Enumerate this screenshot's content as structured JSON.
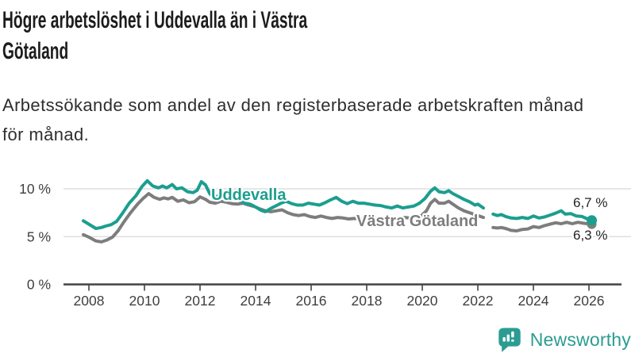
{
  "header": {
    "title": "Högre arbetslöshet i Uddevalla än i Västra Götaland",
    "title_lines": [
      "Högre arbetslöshet i Uddevalla än i Västra",
      "Götaland"
    ],
    "subtitle": "Arbetssökande som andel av den registerbaserade arbetskraften månad för månad.",
    "subtitle_lines": [
      "Arbetssökande som andel av den registerbaserade arbetskraften månad",
      "för månad."
    ]
  },
  "footer": {
    "logo_text": "Newsworthy",
    "logo_color": "#2b9c91"
  },
  "colors": {
    "accent_teal": "#1b9e8f",
    "line_gray": "#7d7d7d",
    "gridline": "#d8d8d8",
    "axis": "#434343",
    "tick_text": "#3f3f3f",
    "value_text": "#242424"
  },
  "chart_data": {
    "type": "line",
    "title": "Högre arbetslöshet i Uddevalla än i Västra Götaland",
    "xlabel": "",
    "ylabel": "",
    "x_ticks": [
      2008,
      2010,
      2012,
      2014,
      2016,
      2018,
      2020,
      2022,
      2024,
      2026
    ],
    "y_ticks": [
      {
        "value": 0,
        "label": "0 %"
      },
      {
        "value": 5,
        "label": "5 %"
      },
      {
        "value": 10,
        "label": "10 %"
      }
    ],
    "y_gridlines": [
      5,
      10
    ],
    "x_range": [
      2007.8,
      2026.6
    ],
    "ylim": [
      0,
      11.5
    ],
    "grid": true,
    "legend_position": "inline-labels",
    "unit": "%",
    "note_gap": "data gap between 2022.2 and 2022.55",
    "series": [
      {
        "name": "Uddevalla",
        "color": "#1b9e8f",
        "end_label": "6,7 %",
        "end_value": 6.7,
        "segments": [
          [
            [
              2007.8,
              6.65
            ],
            [
              2008.0,
              6.3
            ],
            [
              2008.25,
              5.85
            ],
            [
              2008.45,
              5.95
            ],
            [
              2008.6,
              6.1
            ],
            [
              2008.8,
              6.25
            ],
            [
              2009.0,
              6.6
            ],
            [
              2009.2,
              7.4
            ],
            [
              2009.45,
              8.5
            ],
            [
              2009.7,
              9.3
            ],
            [
              2009.9,
              10.2
            ],
            [
              2010.1,
              10.85
            ],
            [
              2010.3,
              10.3
            ],
            [
              2010.5,
              10.1
            ],
            [
              2010.65,
              10.3
            ],
            [
              2010.8,
              10.1
            ],
            [
              2011.0,
              10.45
            ],
            [
              2011.15,
              10.0
            ],
            [
              2011.35,
              10.1
            ],
            [
              2011.55,
              9.7
            ],
            [
              2011.75,
              9.6
            ],
            [
              2011.9,
              9.85
            ],
            [
              2012.05,
              10.75
            ],
            [
              2012.2,
              10.4
            ],
            [
              2012.35,
              9.5
            ],
            [
              2012.5,
              9.05
            ],
            [
              2012.65,
              9.25
            ],
            [
              2012.8,
              9.45
            ],
            [
              2013.0,
              9.25
            ],
            [
              2013.2,
              9.15
            ],
            [
              2013.4,
              8.85
            ],
            [
              2013.6,
              8.5
            ],
            [
              2013.8,
              8.4
            ],
            [
              2014.0,
              8.1
            ],
            [
              2014.2,
              7.75
            ],
            [
              2014.35,
              7.6
            ],
            [
              2014.55,
              7.95
            ],
            [
              2014.75,
              8.25
            ],
            [
              2014.95,
              8.55
            ],
            [
              2015.1,
              8.7
            ],
            [
              2015.3,
              8.45
            ],
            [
              2015.5,
              8.3
            ],
            [
              2015.7,
              8.3
            ],
            [
              2015.9,
              8.5
            ],
            [
              2016.1,
              8.4
            ],
            [
              2016.3,
              8.3
            ],
            [
              2016.5,
              8.55
            ],
            [
              2016.7,
              8.85
            ],
            [
              2016.9,
              9.1
            ],
            [
              2017.1,
              8.7
            ],
            [
              2017.3,
              8.45
            ],
            [
              2017.5,
              8.7
            ],
            [
              2017.7,
              8.5
            ],
            [
              2017.9,
              8.5
            ],
            [
              2018.1,
              8.4
            ],
            [
              2018.3,
              8.3
            ],
            [
              2018.5,
              8.25
            ],
            [
              2018.7,
              8.1
            ],
            [
              2018.9,
              8.0
            ],
            [
              2019.1,
              8.2
            ],
            [
              2019.3,
              8.0
            ],
            [
              2019.5,
              8.1
            ],
            [
              2019.7,
              8.2
            ],
            [
              2019.9,
              8.5
            ],
            [
              2020.1,
              9.0
            ],
            [
              2020.3,
              9.75
            ],
            [
              2020.45,
              10.1
            ],
            [
              2020.6,
              9.7
            ],
            [
              2020.8,
              9.6
            ],
            [
              2020.95,
              9.8
            ],
            [
              2021.1,
              9.5
            ],
            [
              2021.3,
              9.2
            ],
            [
              2021.5,
              8.9
            ],
            [
              2021.7,
              8.65
            ],
            [
              2021.9,
              8.3
            ],
            [
              2022.0,
              8.4
            ],
            [
              2022.2,
              8.0
            ]
          ],
          [
            [
              2022.55,
              7.35
            ],
            [
              2022.7,
              7.2
            ],
            [
              2022.85,
              7.3
            ],
            [
              2023.0,
              7.1
            ],
            [
              2023.2,
              6.95
            ],
            [
              2023.4,
              6.9
            ],
            [
              2023.6,
              7.0
            ],
            [
              2023.8,
              6.9
            ],
            [
              2024.0,
              7.15
            ],
            [
              2024.2,
              6.95
            ],
            [
              2024.4,
              7.05
            ],
            [
              2024.6,
              7.25
            ],
            [
              2024.8,
              7.45
            ],
            [
              2025.0,
              7.7
            ],
            [
              2025.15,
              7.35
            ],
            [
              2025.35,
              7.4
            ],
            [
              2025.55,
              7.15
            ],
            [
              2025.75,
              7.1
            ],
            [
              2025.95,
              6.85
            ],
            [
              2026.1,
              6.7
            ]
          ]
        ]
      },
      {
        "name": "Västra Götaland",
        "color": "#7d7d7d",
        "end_label": "6,3 %",
        "end_value": 6.3,
        "segments": [
          [
            [
              2007.8,
              5.2
            ],
            [
              2008.0,
              4.95
            ],
            [
              2008.25,
              4.55
            ],
            [
              2008.45,
              4.45
            ],
            [
              2008.65,
              4.65
            ],
            [
              2008.85,
              4.95
            ],
            [
              2009.05,
              5.6
            ],
            [
              2009.25,
              6.5
            ],
            [
              2009.5,
              7.5
            ],
            [
              2009.75,
              8.4
            ],
            [
              2009.95,
              9.0
            ],
            [
              2010.15,
              9.5
            ],
            [
              2010.35,
              9.1
            ],
            [
              2010.55,
              8.9
            ],
            [
              2010.7,
              9.05
            ],
            [
              2010.85,
              8.95
            ],
            [
              2011.0,
              9.1
            ],
            [
              2011.2,
              8.7
            ],
            [
              2011.4,
              8.85
            ],
            [
              2011.6,
              8.55
            ],
            [
              2011.8,
              8.65
            ],
            [
              2012.0,
              9.15
            ],
            [
              2012.2,
              8.9
            ],
            [
              2012.35,
              8.6
            ],
            [
              2012.55,
              8.5
            ],
            [
              2012.75,
              8.7
            ],
            [
              2012.95,
              8.6
            ],
            [
              2013.15,
              8.45
            ],
            [
              2013.35,
              8.4
            ],
            [
              2013.55,
              8.5
            ],
            [
              2013.75,
              8.3
            ],
            [
              2013.95,
              8.15
            ],
            [
              2014.15,
              7.9
            ],
            [
              2014.35,
              7.7
            ],
            [
              2014.55,
              7.6
            ],
            [
              2014.75,
              7.7
            ],
            [
              2014.95,
              7.8
            ],
            [
              2015.15,
              7.5
            ],
            [
              2015.35,
              7.3
            ],
            [
              2015.55,
              7.2
            ],
            [
              2015.75,
              7.3
            ],
            [
              2015.95,
              7.1
            ],
            [
              2016.15,
              7.0
            ],
            [
              2016.35,
              7.15
            ],
            [
              2016.55,
              7.0
            ],
            [
              2016.75,
              6.9
            ],
            [
              2016.95,
              7.0
            ],
            [
              2017.15,
              6.95
            ],
            [
              2017.35,
              6.85
            ],
            [
              2017.55,
              6.9
            ],
            [
              2017.75,
              6.85
            ],
            [
              2017.95,
              6.9
            ],
            [
              2018.15,
              6.85
            ],
            [
              2018.35,
              6.9
            ],
            [
              2018.55,
              6.85
            ],
            [
              2018.75,
              6.9
            ],
            [
              2018.95,
              6.95
            ],
            [
              2019.15,
              6.9
            ],
            [
              2019.35,
              7.0
            ],
            [
              2019.55,
              6.95
            ],
            [
              2019.75,
              7.0
            ],
            [
              2019.95,
              7.15
            ],
            [
              2020.15,
              7.7
            ],
            [
              2020.3,
              8.5
            ],
            [
              2020.45,
              8.9
            ],
            [
              2020.6,
              8.5
            ],
            [
              2020.8,
              8.5
            ],
            [
              2020.95,
              8.7
            ],
            [
              2021.1,
              8.4
            ],
            [
              2021.3,
              8.0
            ],
            [
              2021.5,
              7.7
            ],
            [
              2021.7,
              7.5
            ],
            [
              2021.9,
              7.3
            ],
            [
              2022.05,
              7.15
            ],
            [
              2022.2,
              7.0
            ]
          ],
          [
            [
              2022.55,
              5.95
            ],
            [
              2022.7,
              5.9
            ],
            [
              2022.85,
              5.95
            ],
            [
              2023.0,
              5.85
            ],
            [
              2023.2,
              5.65
            ],
            [
              2023.4,
              5.6
            ],
            [
              2023.6,
              5.75
            ],
            [
              2023.8,
              5.8
            ],
            [
              2024.0,
              6.05
            ],
            [
              2024.2,
              5.95
            ],
            [
              2024.4,
              6.15
            ],
            [
              2024.6,
              6.3
            ],
            [
              2024.8,
              6.45
            ],
            [
              2025.0,
              6.35
            ],
            [
              2025.2,
              6.5
            ],
            [
              2025.4,
              6.35
            ],
            [
              2025.6,
              6.5
            ],
            [
              2025.8,
              6.4
            ],
            [
              2025.95,
              6.35
            ],
            [
              2026.1,
              6.3
            ]
          ]
        ]
      }
    ]
  }
}
